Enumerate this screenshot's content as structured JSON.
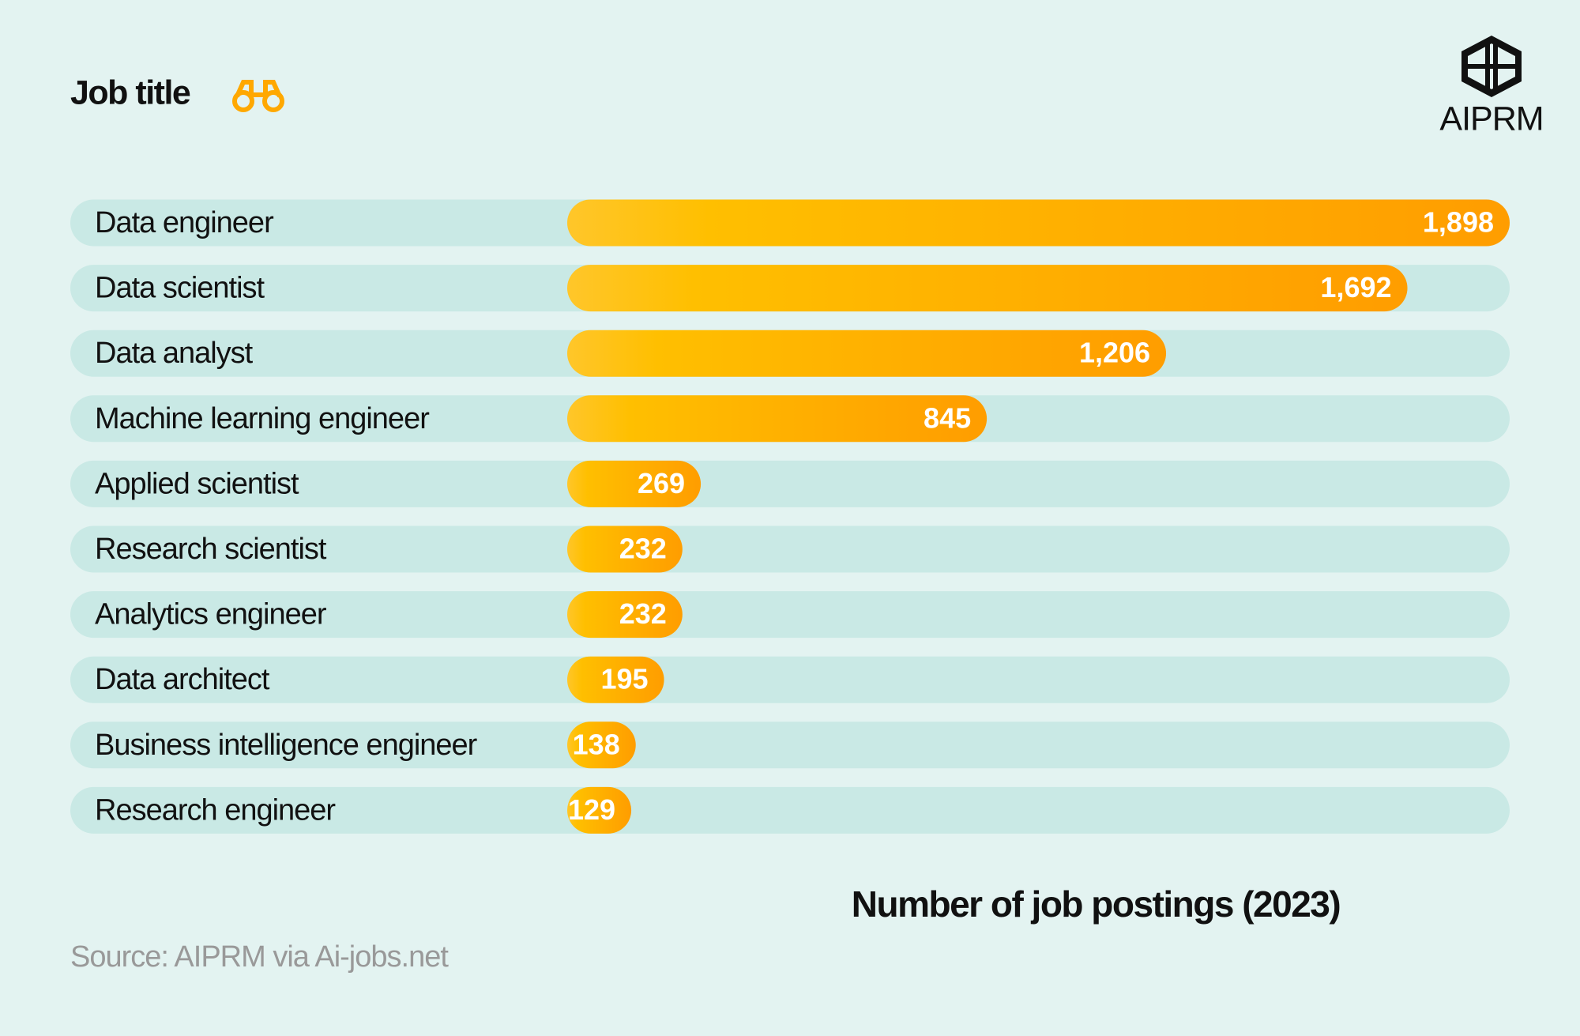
{
  "chart_data": {
    "type": "bar",
    "orientation": "horizontal",
    "title": "Job title",
    "logo": "AIPRM",
    "x_label": "Number of job postings (2023)",
    "source": "Source: AIPRM via Ai-jobs.net",
    "categories": [
      "Data engineer",
      "Data scientist",
      "Data analyst",
      "Machine learning engineer",
      "Applied scientist",
      "Research scientist",
      "Analytics engineer",
      "Data architect",
      "Business intelligence engineer",
      "Research engineer"
    ],
    "values": [
      1898,
      1692,
      1206,
      845,
      269,
      232,
      232,
      195,
      138,
      129
    ],
    "value_labels": [
      "1,898",
      "1,692",
      "1,206",
      "845",
      "269",
      "232",
      "232",
      "195",
      "138",
      "129"
    ],
    "color": "#ffab00"
  }
}
